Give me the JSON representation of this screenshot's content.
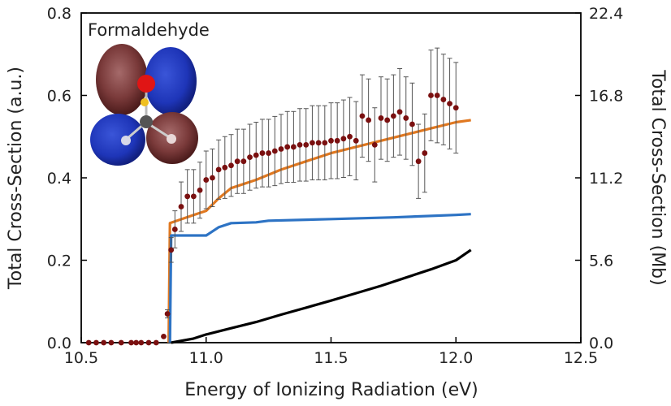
{
  "chart_data": {
    "type": "line",
    "title": "",
    "inset_label": "Formaldehyde",
    "xlabel": "Energy of Ionizing Radiation (eV)",
    "ylabel": "Total Cross-Section (a.u.)",
    "ylabel_right": "Total Cross-Section (Mb)",
    "xlim": [
      10.5,
      12.5
    ],
    "ylim": [
      0,
      0.8
    ],
    "ylim_right": [
      0,
      22.4
    ],
    "x_ticks": [
      "10.5",
      "11.0",
      "11.5",
      "12.0",
      "12.5"
    ],
    "y_ticks": [
      "0.0",
      "0.2",
      "0.4",
      "0.6",
      "0.8"
    ],
    "y_ticks_right": [
      "0.0",
      "5.6",
      "11.2",
      "16.8",
      "22.4"
    ],
    "grid": false,
    "colors": {
      "orange": "#e07820",
      "blue": "#2d73c4",
      "black": "#000000",
      "points": "#7a1010",
      "errorbar": "#555555"
    },
    "series": [
      {
        "color": "orange",
        "style": "line",
        "x": [
          10.85,
          10.855,
          10.95,
          11.0,
          11.05,
          11.1,
          11.2,
          11.3,
          11.4,
          11.5,
          11.6,
          11.7,
          11.8,
          11.9,
          12.0,
          12.06
        ],
        "y": [
          0.0,
          0.29,
          0.31,
          0.32,
          0.35,
          0.375,
          0.395,
          0.42,
          0.44,
          0.46,
          0.475,
          0.49,
          0.505,
          0.52,
          0.535,
          0.54
        ]
      },
      {
        "color": "blue",
        "style": "line",
        "x": [
          10.855,
          10.86,
          11.0,
          11.05,
          11.1,
          11.2,
          11.25,
          11.5,
          11.75,
          12.0,
          12.06
        ],
        "y": [
          0.0,
          0.26,
          0.26,
          0.28,
          0.29,
          0.292,
          0.296,
          0.3,
          0.304,
          0.31,
          0.312
        ]
      },
      {
        "color": "black",
        "style": "line",
        "x": [
          10.86,
          10.95,
          11.0,
          11.1,
          11.2,
          11.3,
          11.4,
          11.5,
          11.6,
          11.7,
          11.8,
          11.9,
          12.0,
          12.06
        ],
        "y": [
          0.0,
          0.01,
          0.02,
          0.035,
          0.05,
          0.068,
          0.085,
          0.102,
          0.12,
          0.138,
          0.158,
          0.178,
          0.2,
          0.225
        ]
      },
      {
        "color": "points",
        "style": "scatter-errorbar",
        "x": [
          10.53,
          10.56,
          10.59,
          10.62,
          10.66,
          10.7,
          10.72,
          10.74,
          10.77,
          10.8,
          10.83,
          10.845,
          10.86,
          10.875,
          10.9,
          10.925,
          10.95,
          10.975,
          11.0,
          11.025,
          11.05,
          11.075,
          11.1,
          11.125,
          11.15,
          11.175,
          11.2,
          11.225,
          11.25,
          11.275,
          11.3,
          11.325,
          11.35,
          11.375,
          11.4,
          11.425,
          11.45,
          11.475,
          11.5,
          11.525,
          11.55,
          11.575,
          11.6,
          11.625,
          11.65,
          11.675,
          11.7,
          11.725,
          11.75,
          11.775,
          11.8,
          11.825,
          11.85,
          11.875,
          11.9,
          11.925,
          11.95,
          11.975,
          12.0
        ],
        "y": [
          0.0,
          0.0,
          0.0,
          0.0,
          0.0,
          0.0,
          0.0,
          0.0,
          0.0,
          0.0,
          0.015,
          0.07,
          0.225,
          0.275,
          0.33,
          0.355,
          0.355,
          0.37,
          0.395,
          0.4,
          0.42,
          0.425,
          0.43,
          0.44,
          0.44,
          0.45,
          0.455,
          0.46,
          0.46,
          0.465,
          0.47,
          0.475,
          0.475,
          0.48,
          0.48,
          0.485,
          0.485,
          0.485,
          0.49,
          0.49,
          0.495,
          0.5,
          0.49,
          0.55,
          0.54,
          0.48,
          0.545,
          0.54,
          0.55,
          0.56,
          0.545,
          0.53,
          0.44,
          0.46,
          0.6,
          0.6,
          0.59,
          0.58,
          0.57
        ],
        "err": [
          0.0,
          0.0,
          0.0,
          0.0,
          0.0,
          0.0,
          0.0,
          0.0,
          0.0,
          0.0,
          0.0,
          0.01,
          0.03,
          0.045,
          0.06,
          0.065,
          0.065,
          0.068,
          0.07,
          0.07,
          0.072,
          0.075,
          0.075,
          0.078,
          0.078,
          0.08,
          0.08,
          0.082,
          0.082,
          0.084,
          0.084,
          0.086,
          0.086,
          0.088,
          0.088,
          0.09,
          0.09,
          0.09,
          0.092,
          0.092,
          0.094,
          0.095,
          0.095,
          0.1,
          0.1,
          0.09,
          0.1,
          0.1,
          0.1,
          0.105,
          0.1,
          0.1,
          0.09,
          0.095,
          0.11,
          0.115,
          0.11,
          0.11,
          0.11
        ]
      }
    ]
  }
}
